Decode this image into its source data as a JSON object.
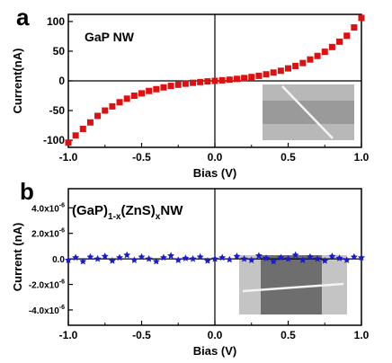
{
  "chart_data": [
    {
      "panel": "a",
      "type": "scatter",
      "series_label": "GaP NW",
      "xlabel": "Bias (V)",
      "ylabel": "Current(nA)",
      "xlim": [
        -1.0,
        1.0
      ],
      "ylim": [
        -112,
        112
      ],
      "x_ticks": [
        "-1.0",
        "-0.5",
        "0.0",
        "0.5",
        "1.0"
      ],
      "y_ticks": [
        "100",
        "50",
        "0",
        "-50",
        "-100"
      ],
      "marker": "square",
      "color": "#e01010",
      "inset": "SEM image",
      "x": [
        -1.0,
        -0.95,
        -0.9,
        -0.85,
        -0.8,
        -0.75,
        -0.7,
        -0.65,
        -0.6,
        -0.55,
        -0.5,
        -0.45,
        -0.4,
        -0.35,
        -0.3,
        -0.25,
        -0.2,
        -0.15,
        -0.1,
        -0.05,
        0.0,
        0.05,
        0.1,
        0.15,
        0.2,
        0.25,
        0.3,
        0.35,
        0.4,
        0.45,
        0.5,
        0.55,
        0.6,
        0.65,
        0.7,
        0.75,
        0.8,
        0.85,
        0.9,
        0.95,
        1.0
      ],
      "y": [
        -104,
        -92,
        -81,
        -70,
        -59,
        -50,
        -43,
        -36,
        -30,
        -25,
        -21,
        -17,
        -14,
        -11,
        -8.5,
        -6.5,
        -4.8,
        -3.3,
        -2,
        -0.9,
        0,
        0.9,
        2,
        3.3,
        4.8,
        6.5,
        8.5,
        11,
        14,
        17,
        21,
        25,
        30,
        36,
        42,
        49,
        57,
        66,
        76,
        90,
        106
      ]
    },
    {
      "panel": "b",
      "type": "scatter",
      "series_label": {
        "base": "(GaP)",
        "sub1": "1-x",
        "mid": "(ZnS)",
        "sub2": "x",
        "end": "NW"
      },
      "xlabel": "Bias (V)",
      "ylabel": "Current (nA)",
      "xlim": [
        -1.0,
        1.0
      ],
      "ylim": [
        -5.2,
        5.5
      ],
      "x_ticks": [
        "-1.0",
        "-0.5",
        "0.0",
        "0.5",
        "1.0"
      ],
      "y_ticks": [
        {
          "value": 4.0,
          "base": "4.0x10",
          "exp": "-6"
        },
        {
          "value": 2.0,
          "base": "2.0x10",
          "exp": "-6"
        },
        {
          "value": 0.0,
          "base": "0.0",
          "exp": ""
        },
        {
          "value": -2.0,
          "base": "-2.0x10",
          "exp": "-6"
        },
        {
          "value": -4.0,
          "base": "-4.0x10",
          "exp": "-6"
        }
      ],
      "marker": "star",
      "color": "#1a1ad0",
      "inset": "SEM image",
      "x": [
        -1.0,
        -0.95,
        -0.9,
        -0.85,
        -0.8,
        -0.75,
        -0.7,
        -0.65,
        -0.6,
        -0.55,
        -0.5,
        -0.45,
        -0.4,
        -0.35,
        -0.3,
        -0.25,
        -0.2,
        -0.15,
        -0.1,
        -0.05,
        0.0,
        0.05,
        0.1,
        0.15,
        0.2,
        0.25,
        0.3,
        0.35,
        0.4,
        0.45,
        0.5,
        0.55,
        0.6,
        0.65,
        0.7,
        0.75,
        0.8,
        0.85,
        0.9,
        0.95,
        1.0
      ],
      "y": [
        -0.1,
        0.1,
        -0.2,
        0.15,
        0.0,
        0.2,
        -0.15,
        0.1,
        0.3,
        -0.1,
        0.15,
        0.0,
        -0.2,
        0.1,
        0.25,
        -0.1,
        0.05,
        0.0,
        0.15,
        -0.15,
        0.0,
        0.1,
        -0.05,
        0.2,
        0.0,
        -0.1,
        0.25,
        0.05,
        -0.2,
        0.1,
        0.0,
        0.3,
        -0.1,
        0.15,
        0.0,
        -0.15,
        0.2,
        0.05,
        -0.1,
        0.15,
        0.1
      ]
    }
  ]
}
